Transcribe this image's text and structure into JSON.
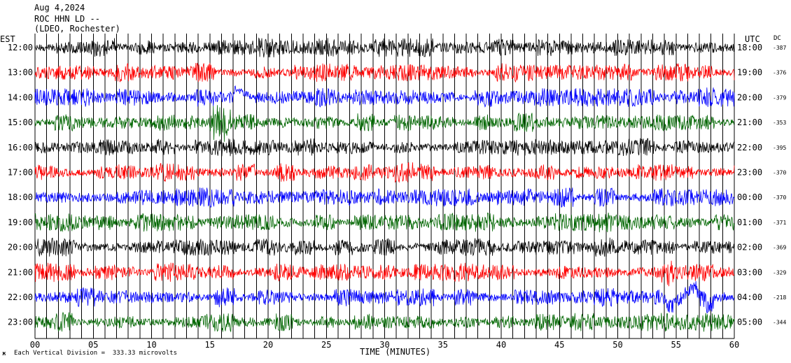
{
  "header": {
    "date": "Aug 4,2024",
    "station": "ROC HHN LD --",
    "network": "(LDEO, Rochester)"
  },
  "chart_data": {
    "type": "line",
    "title": "",
    "xlabel": "TIME (MINUTES)",
    "xlim": [
      0,
      60
    ],
    "x_ticks": [
      "00",
      "05",
      "10",
      "15",
      "20",
      "25",
      "30",
      "35",
      "40",
      "45",
      "50",
      "55",
      "60"
    ],
    "left_axis_label": "EST",
    "right_axis_label": "UTC",
    "dc_label": "DC",
    "grid": true,
    "trace_colors": [
      "#000000",
      "#ff0000",
      "#0000ff",
      "#006600"
    ],
    "rows": [
      {
        "est": "12:00",
        "utc": "18:00",
        "dc": "-387"
      },
      {
        "est": "13:00",
        "utc": "19:00",
        "dc": "-376"
      },
      {
        "est": "14:00",
        "utc": "20:00",
        "dc": "-379"
      },
      {
        "est": "15:00",
        "utc": "21:00",
        "dc": "-353"
      },
      {
        "est": "16:00",
        "utc": "22:00",
        "dc": "-395"
      },
      {
        "est": "17:00",
        "utc": "23:00",
        "dc": "-370"
      },
      {
        "est": "18:00",
        "utc": "00:00",
        "dc": "-370"
      },
      {
        "est": "19:00",
        "utc": "01:00",
        "dc": "-371"
      },
      {
        "est": "20:00",
        "utc": "02:00",
        "dc": "-369"
      },
      {
        "est": "21:00",
        "utc": "03:00",
        "dc": "-329"
      },
      {
        "est": "22:00",
        "utc": "04:00",
        "dc": "-218"
      },
      {
        "est": "23:00",
        "utc": "05:00",
        "dc": "-344"
      }
    ],
    "footnote": "Each Vertical Division =  333.33 microvolts"
  }
}
